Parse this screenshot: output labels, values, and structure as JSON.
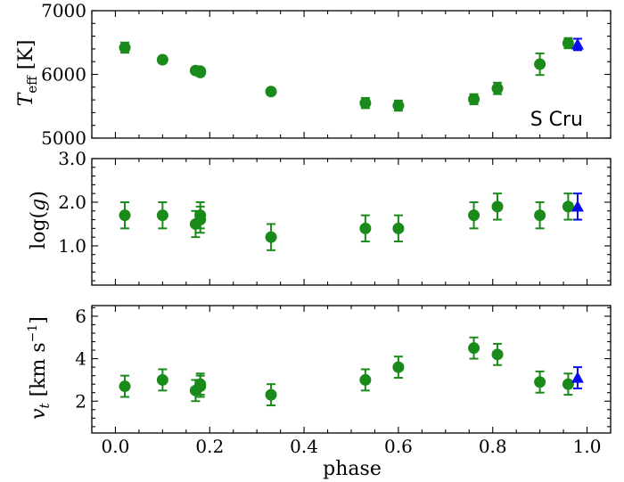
{
  "chart_data": [
    {
      "type": "scatter",
      "ylabel": "T_eff [K]",
      "ylabel_main": "T",
      "ylabel_sub": "eff",
      "ylabel_unit": " [K]",
      "ylim": [
        5000,
        7000
      ],
      "yticks": [
        5000,
        6000,
        7000
      ],
      "ytick_labels": [
        "5000",
        "6000",
        "7000"
      ],
      "annotation": "S Cru",
      "series": [
        {
          "marker": "circle",
          "color": "#1a8a1a",
          "x": [
            0.02,
            0.1,
            0.17,
            0.18,
            0.18,
            0.33,
            0.53,
            0.6,
            0.76,
            0.81,
            0.9,
            0.96
          ],
          "y": [
            6420,
            6230,
            6060,
            6030,
            6050,
            5730,
            5550,
            5510,
            5610,
            5780,
            6160,
            6490
          ],
          "yerr": [
            80,
            50,
            40,
            40,
            40,
            50,
            80,
            80,
            80,
            90,
            170,
            80
          ]
        },
        {
          "marker": "triangle",
          "color": "#0a0aee",
          "x": [
            0.98
          ],
          "y": [
            6470
          ],
          "yerr": [
            90
          ]
        }
      ]
    },
    {
      "type": "scatter",
      "ylabel": "log(g)",
      "ylabel_pre": "log(",
      "ylabel_var": "g",
      "ylabel_post": ")",
      "ylim": [
        0.1,
        3.0
      ],
      "yticks": [
        1.0,
        2.0,
        3.0
      ],
      "ytick_labels": [
        "1.0",
        "2.0",
        "3.0"
      ],
      "series": [
        {
          "marker": "circle",
          "color": "#1a8a1a",
          "x": [
            0.02,
            0.1,
            0.17,
            0.18,
            0.18,
            0.33,
            0.53,
            0.6,
            0.76,
            0.81,
            0.9,
            0.96
          ],
          "y": [
            1.7,
            1.7,
            1.5,
            1.7,
            1.6,
            1.2,
            1.4,
            1.4,
            1.7,
            1.9,
            1.7,
            1.9
          ],
          "yerr": [
            0.3,
            0.3,
            0.3,
            0.3,
            0.3,
            0.3,
            0.3,
            0.3,
            0.3,
            0.3,
            0.3,
            0.3
          ]
        },
        {
          "marker": "triangle",
          "color": "#0a0aee",
          "x": [
            0.98
          ],
          "y": [
            1.9
          ],
          "yerr": [
            0.3
          ]
        }
      ]
    },
    {
      "type": "scatter",
      "ylabel": "v_t [km s^-1]",
      "ylabel_main": "v",
      "ylabel_sub": "t",
      "ylabel_unit": " [km s",
      "ylabel_exp": "−1",
      "ylabel_close": "]",
      "xlabel": "phase",
      "ylim": [
        0.5,
        6.5
      ],
      "yticks": [
        2,
        4,
        6
      ],
      "ytick_labels": [
        "2",
        "4",
        "6"
      ],
      "xlim": [
        -0.05,
        1.05
      ],
      "xticks": [
        0.0,
        0.2,
        0.4,
        0.6,
        0.8,
        1.0
      ],
      "xtick_labels": [
        "0.0",
        "0.2",
        "0.4",
        "0.6",
        "0.8",
        "1.0"
      ],
      "series": [
        {
          "marker": "circle",
          "color": "#1a8a1a",
          "x": [
            0.02,
            0.1,
            0.17,
            0.18,
            0.18,
            0.33,
            0.53,
            0.6,
            0.76,
            0.81,
            0.9,
            0.96
          ],
          "y": [
            2.7,
            3.0,
            2.5,
            2.7,
            2.8,
            2.3,
            3.0,
            3.6,
            4.5,
            4.2,
            2.9,
            2.8
          ],
          "yerr": [
            0.5,
            0.5,
            0.5,
            0.5,
            0.5,
            0.5,
            0.5,
            0.5,
            0.5,
            0.5,
            0.5,
            0.5
          ]
        },
        {
          "marker": "triangle",
          "color": "#0a0aee",
          "x": [
            0.98
          ],
          "y": [
            3.1
          ],
          "yerr": [
            0.5
          ]
        }
      ]
    }
  ]
}
